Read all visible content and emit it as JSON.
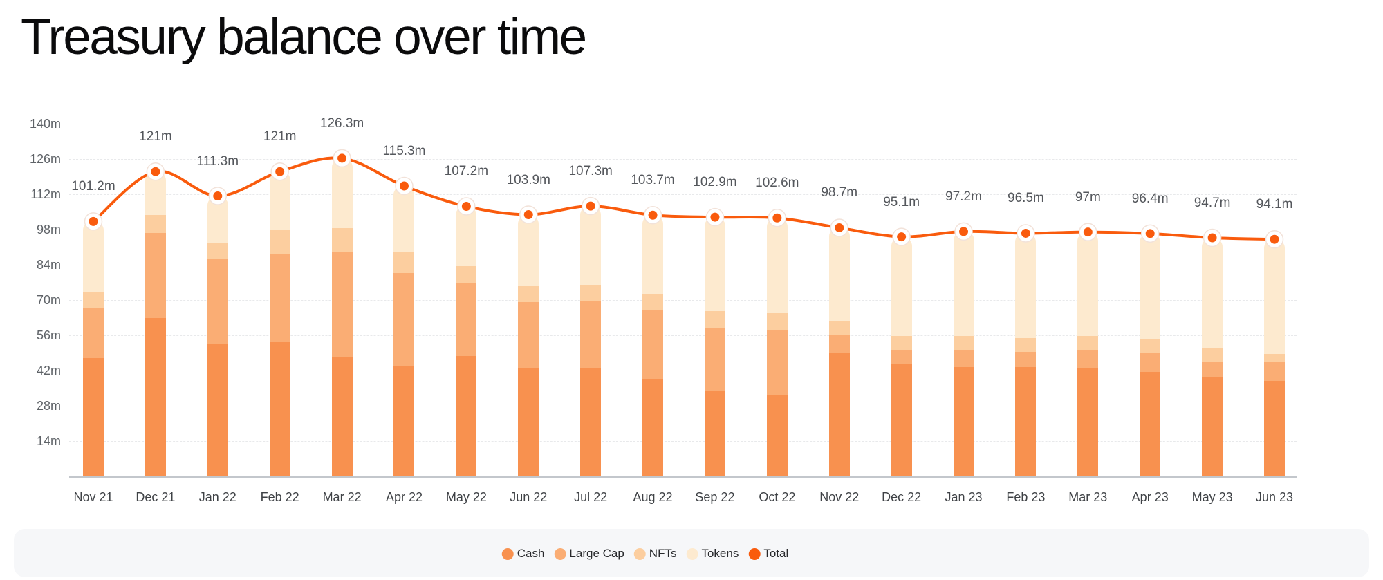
{
  "title": "Treasury balance over time",
  "chart_data": {
    "type": "bar",
    "variant": "stacked-bars-with-total-line",
    "unit": "m",
    "categories": [
      "Nov 21",
      "Dec 21",
      "Jan 22",
      "Feb 22",
      "Mar 22",
      "Apr 22",
      "May 22",
      "Jun 22",
      "Jul 22",
      "Aug 22",
      "Sep 22",
      "Oct 22",
      "Nov 22",
      "Dec 22",
      "Jan 23",
      "Feb 23",
      "Mar 23",
      "Apr 23",
      "May 23",
      "Jun 23"
    ],
    "series": [
      {
        "name": "Cash",
        "color": "#F8914F",
        "values": [
          46.9,
          62.8,
          52.7,
          53.6,
          47.1,
          43.9,
          47.8,
          43.0,
          42.8,
          38.7,
          33.7,
          32.0,
          49.0,
          44.6,
          43.5,
          43.3,
          42.8,
          41.4,
          39.6,
          37.8
        ]
      },
      {
        "name": "Large Cap",
        "color": "#FAAD74",
        "values": [
          20.2,
          33.8,
          33.8,
          34.9,
          41.9,
          36.9,
          28.7,
          26.3,
          26.7,
          27.4,
          25.1,
          26.2,
          7.1,
          5.4,
          6.8,
          6.1,
          7.2,
          7.4,
          6.1,
          7.6
        ]
      },
      {
        "name": "NFTs",
        "color": "#FCCE9F",
        "values": [
          5.9,
          7.1,
          5.9,
          9.2,
          9.6,
          8.5,
          7.0,
          6.6,
          6.4,
          6.2,
          6.7,
          6.6,
          5.5,
          5.6,
          5.5,
          5.5,
          5.6,
          5.5,
          5.2,
          3.1
        ]
      },
      {
        "name": "Tokens",
        "color": "#FDEACF",
        "values": [
          28.2,
          17.3,
          18.9,
          23.3,
          27.7,
          26.0,
          23.7,
          28.0,
          31.4,
          31.4,
          37.4,
          37.8,
          37.1,
          39.5,
          41.4,
          41.6,
          41.4,
          42.1,
          43.8,
          45.6
        ]
      }
    ],
    "total_line": {
      "name": "Total",
      "color": "#F95B0D",
      "values": [
        101.2,
        121,
        111.3,
        121,
        126.3,
        115.3,
        107.2,
        103.9,
        107.3,
        103.7,
        102.9,
        102.6,
        98.7,
        95.1,
        97.2,
        96.5,
        97,
        96.4,
        94.7,
        94.1
      ],
      "point_labels": [
        "101.2m",
        "121m",
        "111.3m",
        "121m",
        "126.3m",
        "115.3m",
        "107.2m",
        "103.9m",
        "107.3m",
        "103.7m",
        "102.9m",
        "102.6m",
        "98.7m",
        "95.1m",
        "97.2m",
        "96.5m",
        "97m",
        "96.4m",
        "94.7m",
        "94.1m"
      ]
    },
    "yticks": {
      "values": [
        14,
        28,
        42,
        56,
        70,
        84,
        98,
        112,
        126,
        140
      ],
      "labels": [
        "14m",
        "28m",
        "42m",
        "56m",
        "70m",
        "84m",
        "98m",
        "112m",
        "126m",
        "140m"
      ]
    },
    "ylim": [
      0,
      140
    ],
    "grid": "horizontal-dashed",
    "legend_position": "bottom"
  },
  "legend": {
    "items": [
      {
        "label": "Cash",
        "color": "#F8914F"
      },
      {
        "label": "Large Cap",
        "color": "#FAAD74"
      },
      {
        "label": "NFTs",
        "color": "#FCCE9F"
      },
      {
        "label": "Tokens",
        "color": "#FDEACF"
      },
      {
        "label": "Total",
        "color": "#F95B0D"
      }
    ]
  },
  "colors": {
    "gridline": "#E8E9EB",
    "axis_baseline": "#C3C7CC",
    "legend_band": "#F6F7F9",
    "title_text": "#0B0B0C",
    "y_label_text": "#5F6368",
    "x_label_text": "#3F4246",
    "total_label_text": "#54575C"
  }
}
